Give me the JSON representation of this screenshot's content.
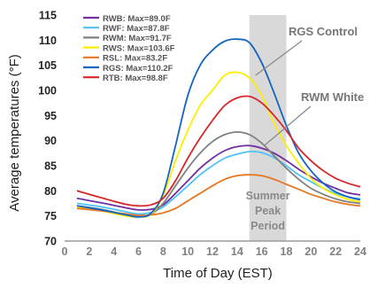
{
  "chart_data": {
    "type": "line",
    "title": "",
    "xlabel": "Time of Day (EST)",
    "ylabel": "Average temperatures (°F)",
    "xlim": [
      0,
      24
    ],
    "ylim": [
      70,
      115
    ],
    "x_ticks": [
      0,
      2,
      4,
      6,
      8,
      10,
      12,
      14,
      16,
      18,
      20,
      22,
      24
    ],
    "y_ticks": [
      70,
      75,
      80,
      85,
      90,
      95,
      100,
      105,
      110,
      115
    ],
    "grid": false,
    "legend_placement": "top-left",
    "shaded_region": {
      "x_range": [
        15,
        18
      ],
      "label_lines": [
        "Summer",
        "Peak",
        "Period"
      ],
      "color": "#d9d9d9"
    },
    "annotations": [
      {
        "text": "RGS Control",
        "target_x": 15.5,
        "target_y": 103
      },
      {
        "text": "RWM White",
        "target_x": 16.2,
        "target_y": 89
      }
    ],
    "series": [
      {
        "name": "RWB: Max=89.0F",
        "color": "#7030a0",
        "x": [
          1,
          3,
          5,
          6,
          7,
          8,
          9,
          10,
          11,
          12,
          13,
          14,
          15,
          16,
          17,
          18,
          19,
          20,
          21,
          22,
          23,
          24
        ],
        "y": [
          78.5,
          77.6,
          76.6,
          76.2,
          76.3,
          77.2,
          79.5,
          82.0,
          84.5,
          86.5,
          88.0,
          88.8,
          89.0,
          88.5,
          87.5,
          86.0,
          84.3,
          82.8,
          81.5,
          80.5,
          79.6,
          79.2
        ]
      },
      {
        "name": "RWF: Max=87.8F",
        "color": "#4fc3f7",
        "x": [
          1,
          3,
          5,
          6,
          7,
          8,
          9,
          10,
          11,
          12,
          13,
          14,
          15,
          16,
          17,
          18,
          19,
          20,
          21,
          22,
          23,
          24
        ],
        "y": [
          77.5,
          76.8,
          75.8,
          75.4,
          75.7,
          76.8,
          78.8,
          81.0,
          83.2,
          85.0,
          86.5,
          87.3,
          87.8,
          87.6,
          86.6,
          85.0,
          83.2,
          81.8,
          80.5,
          79.5,
          78.8,
          78.4
        ]
      },
      {
        "name": "RWM: Max=91.7F",
        "color": "#808080",
        "x": [
          1,
          3,
          5,
          6,
          7,
          8,
          9,
          10,
          11,
          12,
          13,
          14,
          15,
          16,
          17,
          18,
          19,
          20,
          21,
          22,
          23,
          24
        ],
        "y": [
          77.0,
          76.3,
          75.2,
          74.9,
          75.3,
          77.5,
          81.0,
          84.5,
          87.5,
          89.8,
          91.2,
          91.7,
          91.2,
          89.5,
          87.0,
          84.5,
          82.3,
          80.5,
          79.3,
          78.4,
          77.8,
          77.5
        ]
      },
      {
        "name": "RWS: Max=103.6F",
        "color": "#ffee00",
        "x": [
          1,
          3,
          5,
          6,
          7,
          8,
          9,
          10,
          11,
          12,
          13,
          14,
          15,
          16,
          17,
          18,
          19,
          20,
          21,
          22,
          23,
          24
        ],
        "y": [
          76.8,
          76.0,
          75.0,
          74.8,
          75.3,
          79.0,
          86.0,
          92.0,
          97.0,
          100.0,
          103.0,
          103.6,
          102.5,
          99.0,
          93.5,
          89.0,
          85.5,
          82.5,
          80.5,
          79.2,
          78.3,
          77.8
        ]
      },
      {
        "name": "RSL: Max=83.2F",
        "color": "#e87722",
        "x": [
          1,
          3,
          5,
          6,
          7,
          8,
          9,
          10,
          11,
          12,
          13,
          14,
          15,
          16,
          17,
          18,
          19,
          20,
          21,
          22,
          23,
          24
        ],
        "y": [
          76.5,
          76.0,
          75.4,
          75.1,
          75.2,
          75.6,
          76.5,
          78.0,
          79.5,
          81.0,
          82.3,
          83.0,
          83.2,
          83.0,
          82.3,
          81.3,
          80.3,
          79.3,
          78.5,
          77.8,
          77.3,
          77.0
        ]
      },
      {
        "name": "RGS: Max=110.2F",
        "color": "#1565c0",
        "x": [
          1,
          3,
          5,
          6,
          7,
          8,
          9,
          10,
          11,
          12,
          13,
          14,
          15,
          16,
          17,
          18,
          19,
          20,
          21,
          22,
          23,
          24
        ],
        "y": [
          77.0,
          76.2,
          75.2,
          74.8,
          75.5,
          79.5,
          89.0,
          99.0,
          105.0,
          108.0,
          109.8,
          110.2,
          109.5,
          105.5,
          99.5,
          93.0,
          87.5,
          84.0,
          81.5,
          79.8,
          78.8,
          78.2
        ]
      },
      {
        "name": "RTB: Max=98.8F",
        "color": "#d62728",
        "x": [
          1,
          3,
          5,
          6,
          7,
          8,
          9,
          10,
          11,
          12,
          13,
          14,
          15,
          16,
          17,
          18,
          19,
          20,
          21,
          22,
          23,
          24
        ],
        "y": [
          80.0,
          78.6,
          77.3,
          77.0,
          77.2,
          78.5,
          82.0,
          86.5,
          90.5,
          94.0,
          97.0,
          98.5,
          98.8,
          97.5,
          95.0,
          92.0,
          88.5,
          86.0,
          84.0,
          82.5,
          81.5,
          80.8
        ]
      }
    ]
  }
}
